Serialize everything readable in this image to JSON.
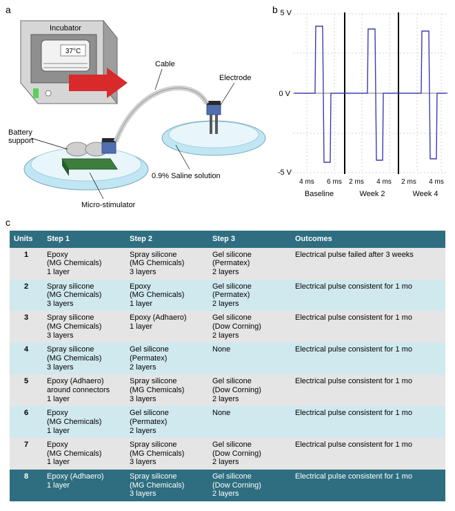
{
  "panelA": {
    "label": "a",
    "labels": {
      "incubator": "Incubator",
      "temp": "37°C",
      "cable": "Cable",
      "electrode": "Electrode",
      "battery": "Battery\nsupport",
      "saline": "0.9% Saline solution",
      "stim": "Micro-stimulator"
    },
    "colors": {
      "dish": "#bfe6f2",
      "dish_rim": "#77a7b8",
      "stim_body": "#3e7d3e",
      "battery": "#cfcfcf",
      "incubator_body": "#d6d6d6",
      "incubator_dark": "#9e9e9e",
      "arrow": "#d82a2a",
      "cable": "#d0d0d0",
      "connector": "#4f6fb0"
    }
  },
  "panelB": {
    "label": "b",
    "y_top_label": "5 V",
    "y_mid_label": "0 V",
    "y_bot_label": "-5 V",
    "line_color": "#3a3ab0",
    "grid_color": "#d0d0d8",
    "divider_color": "#000000",
    "ylim": [
      -5,
      5
    ],
    "xlabels": [
      "4 ms",
      "6 ms",
      "2 ms",
      "4 ms",
      "2 ms",
      "4 ms"
    ],
    "group_labels": [
      "Baseline",
      "Week 2",
      "Week 4"
    ],
    "background": "#ffffff"
  },
  "panelC": {
    "label": "c",
    "header_bg": "#2e6e80",
    "header_fg": "#ffffff",
    "row_odd_bg": "#e5e5e5",
    "row_even_bg": "#d0e9ef",
    "highlight_row": 8,
    "columns": [
      "Units",
      "Step 1",
      "Step 2",
      "Step 3",
      "Outcomes"
    ],
    "rows": [
      {
        "unit": "1",
        "step1": {
          "name": "Epoxy",
          "vendor": "(MG Chemicals)",
          "layers": "1 layer"
        },
        "step2": {
          "name": "Spray silicone",
          "vendor": "(MG Chemicals)",
          "layers": "3 layers"
        },
        "step3": {
          "name": "Gel silicone",
          "vendor": "(Permatex)",
          "layers": "2 layers"
        },
        "outcome": "Electrical pulse failed after 3 weeks"
      },
      {
        "unit": "2",
        "step1": {
          "name": "Spray silicone",
          "vendor": "(MG Chemicals)",
          "layers": "3 layers"
        },
        "step2": {
          "name": "Epoxy",
          "vendor": "(MG Chemicals)",
          "layers": "1 layer"
        },
        "step3": {
          "name": "Gel silicone",
          "vendor": "(Permatex)",
          "layers": "2 layers"
        },
        "outcome": "Electrical pulse consistent for 1 mo"
      },
      {
        "unit": "3",
        "step1": {
          "name": "Spray silicone",
          "vendor": "(MG Chemicals)",
          "layers": "3 layers"
        },
        "step2": {
          "name": "Epoxy (Adhaero)",
          "vendor": "",
          "layers": "1 layer"
        },
        "step3": {
          "name": "Gel silicone",
          "vendor": "(Dow Corning)",
          "layers": "2 layers"
        },
        "outcome": "Electrical pulse consistent for 1 mo"
      },
      {
        "unit": "4",
        "step1": {
          "name": "Spray silicone",
          "vendor": "(MG Chemicals)",
          "layers": "3 layers"
        },
        "step2": {
          "name": "Gel silicone",
          "vendor": "(Permatex)",
          "layers": "2 layers"
        },
        "step3": {
          "name": "None",
          "vendor": "",
          "layers": ""
        },
        "outcome": "Electrical pulse consistent for 1 mo"
      },
      {
        "unit": "5",
        "step1": {
          "name": "Epoxy (Adhaero)",
          "vendor": "around connectors",
          "layers": "1 layer"
        },
        "step2": {
          "name": "Spray silicone",
          "vendor": "(MG Chemicals)",
          "layers": "3 layers"
        },
        "step3": {
          "name": "Gel silicone",
          "vendor": "(Dow Corning)",
          "layers": "2 layers"
        },
        "outcome": "Electrical pulse consistent for 1 mo"
      },
      {
        "unit": "6",
        "step1": {
          "name": "Epoxy",
          "vendor": "(MG Chemicals)",
          "layers": "1 layer"
        },
        "step2": {
          "name": "Gel silicone",
          "vendor": "(Permatex)",
          "layers": "2 layers"
        },
        "step3": {
          "name": "None",
          "vendor": "",
          "layers": ""
        },
        "outcome": "Electrical pulse consistent for 1 mo"
      },
      {
        "unit": "7",
        "step1": {
          "name": "Epoxy",
          "vendor": "(MG Chemicals)",
          "layers": "1 layer"
        },
        "step2": {
          "name": "Spray silicone",
          "vendor": "(MG Chemicals)",
          "layers": "3 layers"
        },
        "step3": {
          "name": "Gel silicone",
          "vendor": "(Dow Corning)",
          "layers": "2 layers"
        },
        "outcome": "Electrical pulse consistent for 1 mo"
      },
      {
        "unit": "8",
        "step1": {
          "name": "Epoxy (Adhaero)",
          "vendor": "",
          "layers": "1 layer"
        },
        "step2": {
          "name": "Spray silicone",
          "vendor": "(MG Chemicals)",
          "layers": "3 layers"
        },
        "step3": {
          "name": "Gel silicone",
          "vendor": "(Dow Corning)",
          "layers": "2 layers"
        },
        "outcome": "Electrical pulse consistent for 1 mo"
      }
    ]
  }
}
